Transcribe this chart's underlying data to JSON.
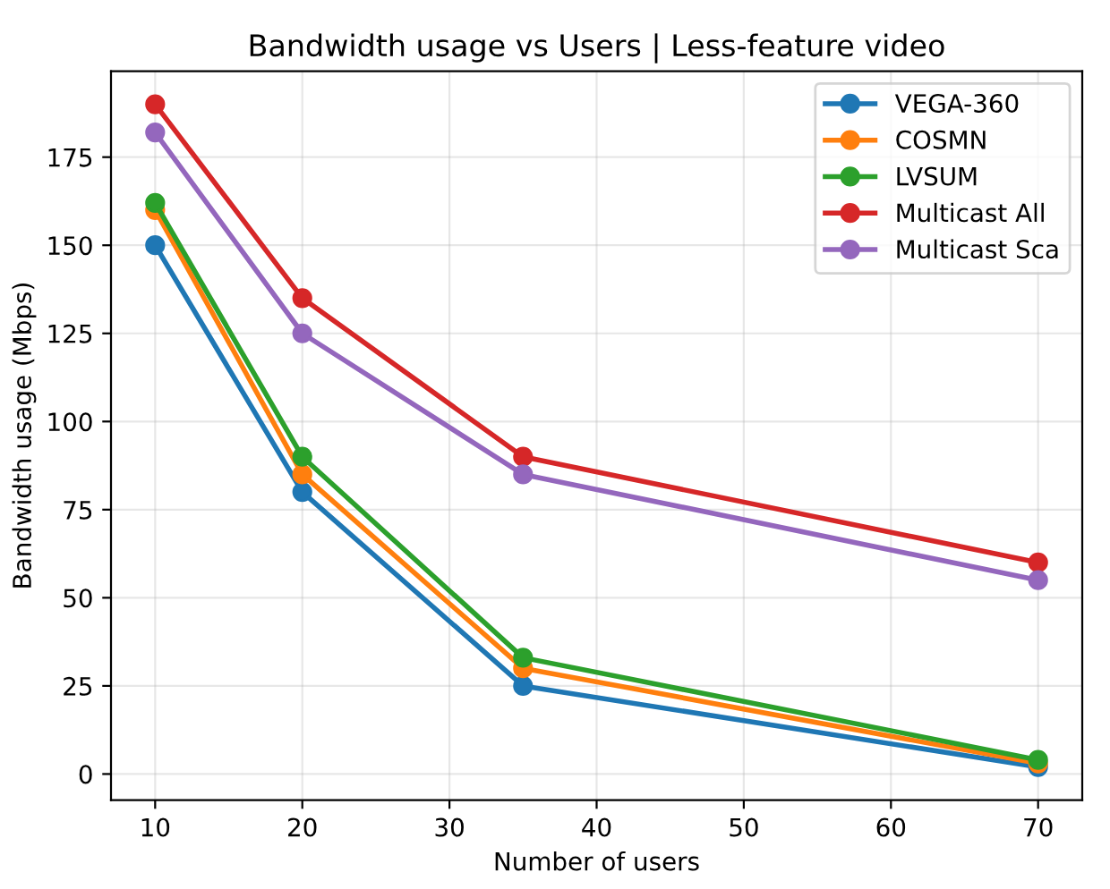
{
  "chart_data": {
    "type": "line",
    "title": "Bandwidth usage vs Users | Less-feature video",
    "xlabel": "Number of users",
    "ylabel": "Bandwidth usage (Mbps)",
    "x": [
      10,
      20,
      35,
      70
    ],
    "series": [
      {
        "name": "VEGA-360",
        "color": "#1f77b4",
        "values": [
          150,
          80,
          25,
          2
        ]
      },
      {
        "name": "COSMN",
        "color": "#ff7f0e",
        "values": [
          160,
          85,
          30,
          3
        ]
      },
      {
        "name": "LVSUM",
        "color": "#2ca02c",
        "values": [
          162,
          90,
          33,
          4
        ]
      },
      {
        "name": "Multicast All",
        "color": "#d62728",
        "values": [
          190,
          135,
          90,
          60
        ]
      },
      {
        "name": "Multicast Sca",
        "color": "#9467bd",
        "values": [
          182,
          125,
          85,
          55
        ]
      }
    ],
    "xlim": [
      7,
      73
    ],
    "ylim": [
      -7.4,
      199.4
    ],
    "xticks": [
      10,
      20,
      30,
      40,
      50,
      60,
      70
    ],
    "yticks": [
      0,
      25,
      50,
      75,
      100,
      125,
      150,
      175
    ],
    "grid": true,
    "legend": "top right",
    "marker": "circle",
    "line_style": "solid"
  }
}
